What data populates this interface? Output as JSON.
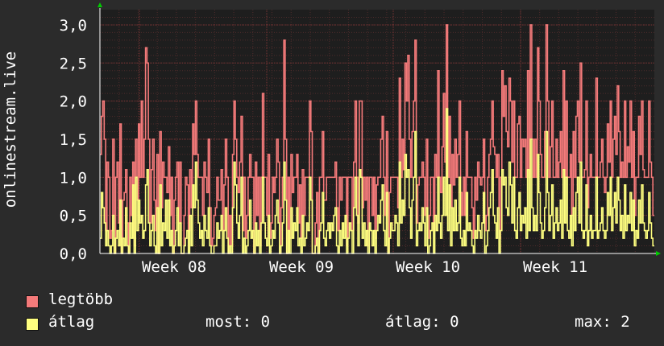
{
  "ylabel": "onlinestream.live",
  "legend": {
    "series1_label": "legtöbb",
    "series2_label": "átlag",
    "stat_now": "most: 0",
    "stat_avg": "átlag: 0",
    "stat_max": "max: 2"
  },
  "colors": {
    "background": "#2b2b2b",
    "plot_bg": "#1e1e1e",
    "grid": "#5a2f2f",
    "series1": "#f47a7a",
    "series2": "#ffff80",
    "axis_arrow": "#00cc00"
  },
  "chart_data": {
    "type": "line",
    "xlabel": "",
    "ylabel": "onlinestream.live",
    "ylim": [
      0,
      3.2
    ],
    "yticks": [
      "0,0",
      "0,5",
      "1,0",
      "1,5",
      "2,0",
      "2,5",
      "3,0"
    ],
    "x_tick_labels": [
      "Week 08",
      "Week 09",
      "Week 10",
      "Week 11"
    ],
    "grid": true,
    "legend_position": "bottom-left",
    "series": [
      {
        "name": "legtöbb",
        "values": [
          1.3,
          1.8,
          2.0,
          1.5,
          0.3,
          1.2,
          1.0,
          0.2,
          0.3,
          1.5,
          0.0,
          1.0,
          1.2,
          0.4,
          1.7,
          0.0,
          0.7,
          0.8,
          1.1,
          0.4,
          0.0,
          1.0,
          0.5,
          1.2,
          0.1,
          1.5,
          0.7,
          1.7,
          1.0,
          2.0,
          1.0,
          1.5,
          2.7,
          2.5,
          1.5,
          0.4,
          1.1,
          1.5,
          0.7,
          0.3,
          1.3,
          0.0,
          1.6,
          0.6,
          1.2,
          1.0,
          1.0,
          0.8,
          1.4,
          0.5,
          1.0,
          0.0,
          0.7,
          1.0,
          1.2,
          0.4,
          1.2,
          0.0,
          0.0,
          0.5,
          1.0,
          0.9,
          0.3,
          1.1,
          0.6,
          1.7,
          1.3,
          2.0,
          1.3,
          1.0,
          1.0,
          1.0,
          0.5,
          1.2,
          1.0,
          0.8,
          1.5,
          0.6,
          0.1,
          0.2,
          0.5,
          0.6,
          1.0,
          0.7,
          0.7,
          1.1,
          0.3,
          0.9,
          1.5,
          1.0,
          0.0,
          0.5,
          0.1,
          1.3,
          2.0,
          1.5,
          1.0,
          0.8,
          1.2,
          1.8,
          0.3,
          1.0,
          0.2,
          0.5,
          1.0,
          1.3,
          1.0,
          1.0,
          0.0,
          1.2,
          0.5,
          1.0,
          0.1,
          1.0,
          2.1,
          1.0,
          1.0,
          0.5,
          1.3,
          0.2,
          0.4,
          1.0,
          0.8,
          1.0,
          1.5,
          1.2,
          0.0,
          0.6,
          1.0,
          2.8,
          1.5,
          0.0,
          1.0,
          0.2,
          1.3,
          0.8,
          1.0,
          1.0,
          1.3,
          0.4,
          0.9,
          0.2,
          1.1,
          0.5,
          1.0,
          1.0,
          1.0,
          2.0,
          1.6,
          0.0,
          0.0,
          0.4,
          0.8,
          0.0,
          1.0,
          1.0,
          1.6,
          0.7,
          0.7,
          1.0,
          1.0,
          1.0,
          1.0,
          1.0,
          1.0,
          1.2,
          0.6,
          0.3,
          1.0,
          0.7,
          1.0,
          1.0,
          1.0,
          0.1,
          1.0,
          1.0,
          1.0,
          0.3,
          1.2,
          2.0,
          1.0,
          0.4,
          2.0,
          2.0,
          0.6,
          1.0,
          0.7,
          1.0,
          0.1,
          1.0,
          1.0,
          0.5,
          1.0,
          0.2,
          0.9,
          1.0,
          1.0,
          1.5,
          1.8,
          1.0,
          0.5,
          1.6,
          0.0,
          0.8,
          1.0,
          1.0,
          1.0,
          1.0,
          1.0,
          0.6,
          2.3,
          1.0,
          1.5,
          1.1,
          2.5,
          2.0,
          2.6,
          1.5,
          1.0,
          1.6,
          2.0,
          2.8,
          0.4,
          0.9,
          1.0,
          1.0,
          1.2,
          1.0,
          0.5,
          1.5,
          0.2,
          0.5,
          1.0,
          1.0,
          0.3,
          1.3,
          1.0,
          2.4,
          1.0,
          0.8,
          1.4,
          2.1,
          1.2,
          3.0,
          1.0,
          1.8,
          0.6,
          1.3,
          0.9,
          1.5,
          1.0,
          1.3,
          2.0,
          0.8,
          0.5,
          1.0,
          0.5,
          1.6,
          1.0,
          1.0,
          1.0,
          0.6,
          0.2,
          1.0,
          0.7,
          1.2,
          1.0,
          0.9,
          1.0,
          1.5,
          0.3,
          0.5,
          1.0,
          1.3,
          1.5,
          2.0,
          1.4,
          1.3,
          1.0,
          1.3,
          0.2,
          1.0,
          2.4,
          1.8,
          2.2,
          1.6,
          1.4,
          2.3,
          2.0,
          1.2,
          2.0,
          1.0,
          1.0,
          1.7,
          1.8,
          1.0,
          1.5,
          1.4,
          1.5,
          1.0,
          2.4,
          1.0,
          3.0,
          1.5,
          1.0,
          1.5,
          1.0,
          2.7,
          2.0,
          1.3,
          1.0,
          1.0,
          1.6,
          3.0,
          2.0,
          1.0,
          1.4,
          2.0,
          1.0,
          1.0,
          1.5,
          1.0,
          1.2,
          1.6,
          1.0,
          2.4,
          1.0,
          2.0,
          1.0,
          1.0,
          1.3,
          0.5,
          1.6,
          1.0,
          1.8,
          2.0,
          1.2,
          2.5,
          1.0,
          1.0,
          1.1,
          2.0,
          0.6,
          1.0,
          1.3,
          1.0,
          1.0,
          1.0,
          2.3,
          1.0,
          1.0,
          1.2,
          1.5,
          1.0,
          0.8,
          1.0,
          1.7,
          1.2,
          2.0,
          1.0,
          1.5,
          1.8,
          1.3,
          2.2,
          1.6,
          1.0,
          1.2,
          1.0,
          2.0,
          1.0,
          1.4,
          1.2,
          2.0,
          1.0,
          1.6,
          0.5,
          1.0,
          1.0,
          1.8,
          1.3,
          2.0,
          1.1,
          1.0,
          1.0,
          1.0,
          2.0,
          1.2,
          1.0,
          0.5
        ]
      },
      {
        "name": "átlag",
        "values": [
          0.2,
          0.8,
          0.6,
          0.4,
          0.1,
          0.3,
          0.1,
          0.0,
          0.1,
          0.5,
          0.0,
          0.2,
          0.3,
          0.1,
          0.7,
          0.0,
          0.2,
          0.1,
          0.6,
          0.1,
          0.0,
          0.4,
          0.2,
          0.9,
          0.0,
          1.0,
          0.3,
          0.7,
          0.4,
          0.5,
          0.2,
          0.3,
          0.9,
          1.1,
          0.4,
          0.1,
          0.3,
          0.5,
          0.1,
          0.0,
          0.6,
          0.0,
          0.9,
          0.1,
          0.4,
          0.3,
          0.7,
          0.2,
          0.7,
          0.1,
          0.3,
          0.0,
          0.1,
          0.3,
          0.6,
          0.1,
          0.4,
          0.0,
          0.0,
          0.1,
          0.2,
          0.3,
          0.0,
          0.5,
          0.1,
          0.9,
          0.6,
          1.2,
          0.7,
          0.4,
          0.2,
          0.3,
          0.1,
          0.5,
          0.3,
          0.2,
          0.6,
          0.1,
          0.0,
          0.0,
          0.1,
          0.1,
          0.4,
          0.2,
          0.3,
          0.5,
          0.0,
          0.3,
          0.6,
          0.2,
          0.0,
          0.1,
          0.0,
          0.6,
          1.2,
          0.9,
          0.4,
          0.2,
          0.5,
          1.0,
          0.0,
          0.2,
          0.0,
          0.1,
          0.3,
          0.7,
          0.2,
          0.3,
          0.0,
          0.4,
          0.1,
          0.3,
          0.0,
          0.4,
          1.0,
          0.4,
          0.2,
          0.1,
          0.5,
          0.0,
          0.1,
          0.3,
          0.2,
          0.5,
          0.7,
          0.4,
          0.0,
          0.1,
          0.4,
          1.2,
          0.7,
          0.0,
          0.3,
          0.0,
          0.6,
          0.2,
          0.4,
          0.3,
          0.6,
          0.1,
          0.2,
          0.0,
          0.5,
          0.1,
          0.2,
          0.4,
          0.3,
          1.0,
          0.7,
          0.0,
          0.0,
          0.1,
          0.2,
          0.0,
          0.3,
          0.4,
          0.8,
          0.2,
          0.1,
          0.3,
          0.4,
          0.2,
          0.4,
          0.3,
          0.5,
          0.6,
          0.1,
          0.0,
          0.3,
          0.1,
          0.4,
          0.2,
          0.5,
          0.0,
          0.2,
          0.4,
          0.3,
          0.0,
          0.6,
          1.0,
          0.5,
          0.1,
          1.1,
          1.0,
          0.2,
          0.4,
          0.1,
          0.3,
          0.0,
          0.4,
          0.3,
          0.1,
          0.3,
          0.0,
          0.3,
          0.5,
          0.4,
          0.7,
          0.9,
          0.3,
          0.1,
          0.8,
          0.0,
          0.2,
          0.4,
          0.3,
          0.3,
          0.5,
          0.4,
          0.1,
          1.2,
          0.4,
          0.7,
          0.5,
          1.3,
          1.0,
          1.1,
          0.6,
          0.2,
          0.7,
          1.0,
          1.6,
          0.1,
          0.3,
          0.4,
          0.3,
          0.6,
          0.4,
          0.1,
          0.6,
          0.0,
          0.1,
          0.3,
          0.4,
          0.0,
          0.5,
          0.3,
          1.0,
          0.4,
          0.2,
          0.5,
          1.0,
          0.5,
          1.9,
          0.3,
          0.9,
          0.1,
          0.6,
          0.3,
          0.7,
          0.3,
          0.4,
          1.0,
          0.2,
          0.1,
          0.3,
          0.1,
          0.8,
          0.3,
          0.4,
          0.3,
          0.1,
          0.0,
          0.3,
          0.2,
          0.5,
          0.3,
          0.2,
          0.4,
          0.8,
          0.0,
          0.1,
          0.3,
          0.6,
          0.8,
          1.1,
          0.5,
          0.4,
          0.2,
          0.6,
          0.0,
          0.3,
          1.1,
          0.9,
          1.0,
          0.6,
          0.5,
          1.2,
          0.9,
          0.4,
          1.0,
          0.3,
          0.2,
          0.6,
          0.8,
          0.3,
          0.5,
          0.4,
          0.6,
          0.2,
          1.1,
          0.3,
          1.5,
          0.6,
          0.3,
          0.5,
          0.3,
          1.3,
          0.8,
          0.4,
          0.2,
          0.3,
          0.6,
          1.6,
          0.8,
          0.3,
          0.5,
          0.9,
          0.2,
          0.4,
          0.6,
          0.3,
          0.4,
          0.7,
          0.2,
          1.1,
          0.4,
          1.0,
          0.3,
          0.2,
          0.5,
          0.1,
          0.6,
          0.3,
          0.8,
          1.0,
          0.4,
          1.2,
          0.3,
          0.2,
          0.3,
          0.9,
          0.1,
          0.3,
          0.5,
          0.2,
          0.3,
          0.3,
          1.0,
          0.2,
          0.3,
          0.4,
          0.6,
          0.3,
          0.2,
          0.3,
          0.8,
          0.5,
          1.0,
          0.3,
          0.6,
          0.8,
          0.4,
          1.0,
          0.7,
          0.3,
          0.5,
          0.2,
          0.9,
          0.3,
          0.5,
          0.4,
          0.8,
          0.3,
          0.7,
          0.1,
          0.3,
          0.2,
          0.7,
          0.4,
          0.9,
          0.4,
          0.3,
          0.2,
          0.3,
          0.8,
          0.4,
          0.2,
          0.1
        ]
      }
    ]
  }
}
